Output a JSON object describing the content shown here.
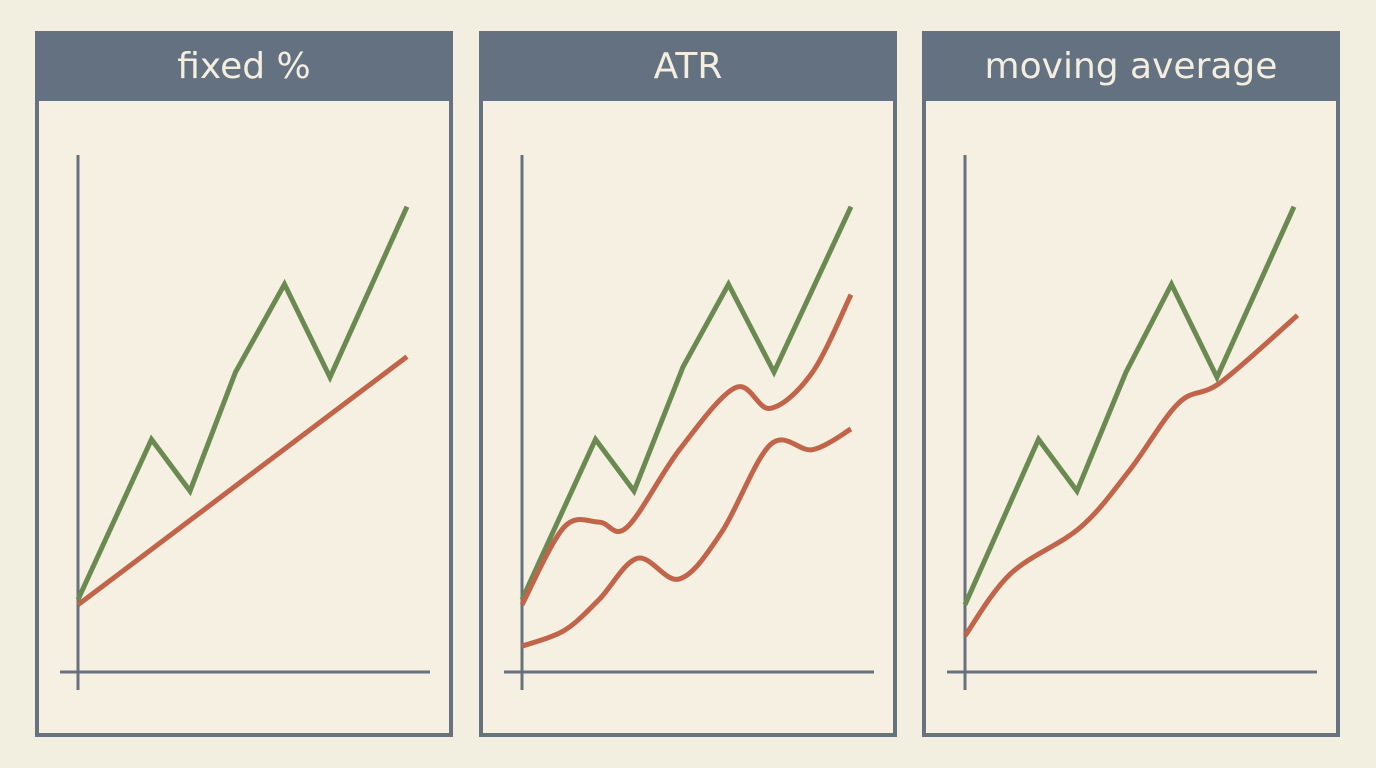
{
  "chart_data": [
    {
      "type": "line",
      "title": "fixed %",
      "xlim": [
        0,
        10
      ],
      "ylim": [
        0,
        100
      ],
      "series": [
        {
          "color": "#6b8a52",
          "smooth": false,
          "x": [
            0,
            2.1,
            3.2,
            4.5,
            5.9,
            7.2,
            9.4
          ],
          "values": [
            14,
            45,
            35,
            58,
            75,
            57,
            90
          ]
        },
        {
          "color": "#c2644a",
          "smooth": false,
          "x": [
            0,
            9.4
          ],
          "values": [
            13,
            61
          ]
        }
      ]
    },
    {
      "type": "line",
      "title": "ATR",
      "xlim": [
        0,
        10
      ],
      "ylim": [
        0,
        100
      ],
      "series": [
        {
          "color": "#6b8a52",
          "smooth": false,
          "x": [
            0,
            2.1,
            3.2,
            4.6,
            5.9,
            7.2,
            9.4
          ],
          "values": [
            14,
            45,
            35,
            59,
            75,
            58,
            90
          ]
        },
        {
          "color": "#c2644a",
          "smooth": true,
          "x": [
            0,
            1.2,
            2.2,
            3.0,
            4.5,
            6.1,
            7.1,
            8.3,
            9.4
          ],
          "values": [
            13,
            28,
            29,
            28,
            43,
            55,
            51,
            58,
            73
          ]
        },
        {
          "color": "#c2644a",
          "smooth": true,
          "x": [
            0,
            1.2,
            2.2,
            3.3,
            4.5,
            5.7,
            7.1,
            8.3,
            9.4
          ],
          "values": [
            5,
            8,
            14,
            22,
            18,
            27,
            44,
            43,
            47
          ]
        }
      ]
    },
    {
      "type": "line",
      "title": "moving average",
      "xlim": [
        0,
        10
      ],
      "ylim": [
        0,
        100
      ],
      "series": [
        {
          "color": "#6b8a52",
          "smooth": false,
          "x": [
            0,
            2.1,
            3.2,
            4.6,
            5.9,
            7.2,
            9.4
          ],
          "values": [
            13,
            45,
            35,
            58,
            75,
            57,
            90
          ]
        },
        {
          "color": "#c2644a",
          "smooth": true,
          "x": [
            0,
            1.3,
            3.3,
            4.7,
            6.1,
            7.3,
            9.5
          ],
          "values": [
            7,
            19,
            28,
            39,
            52,
            56,
            69
          ]
        }
      ]
    }
  ]
}
